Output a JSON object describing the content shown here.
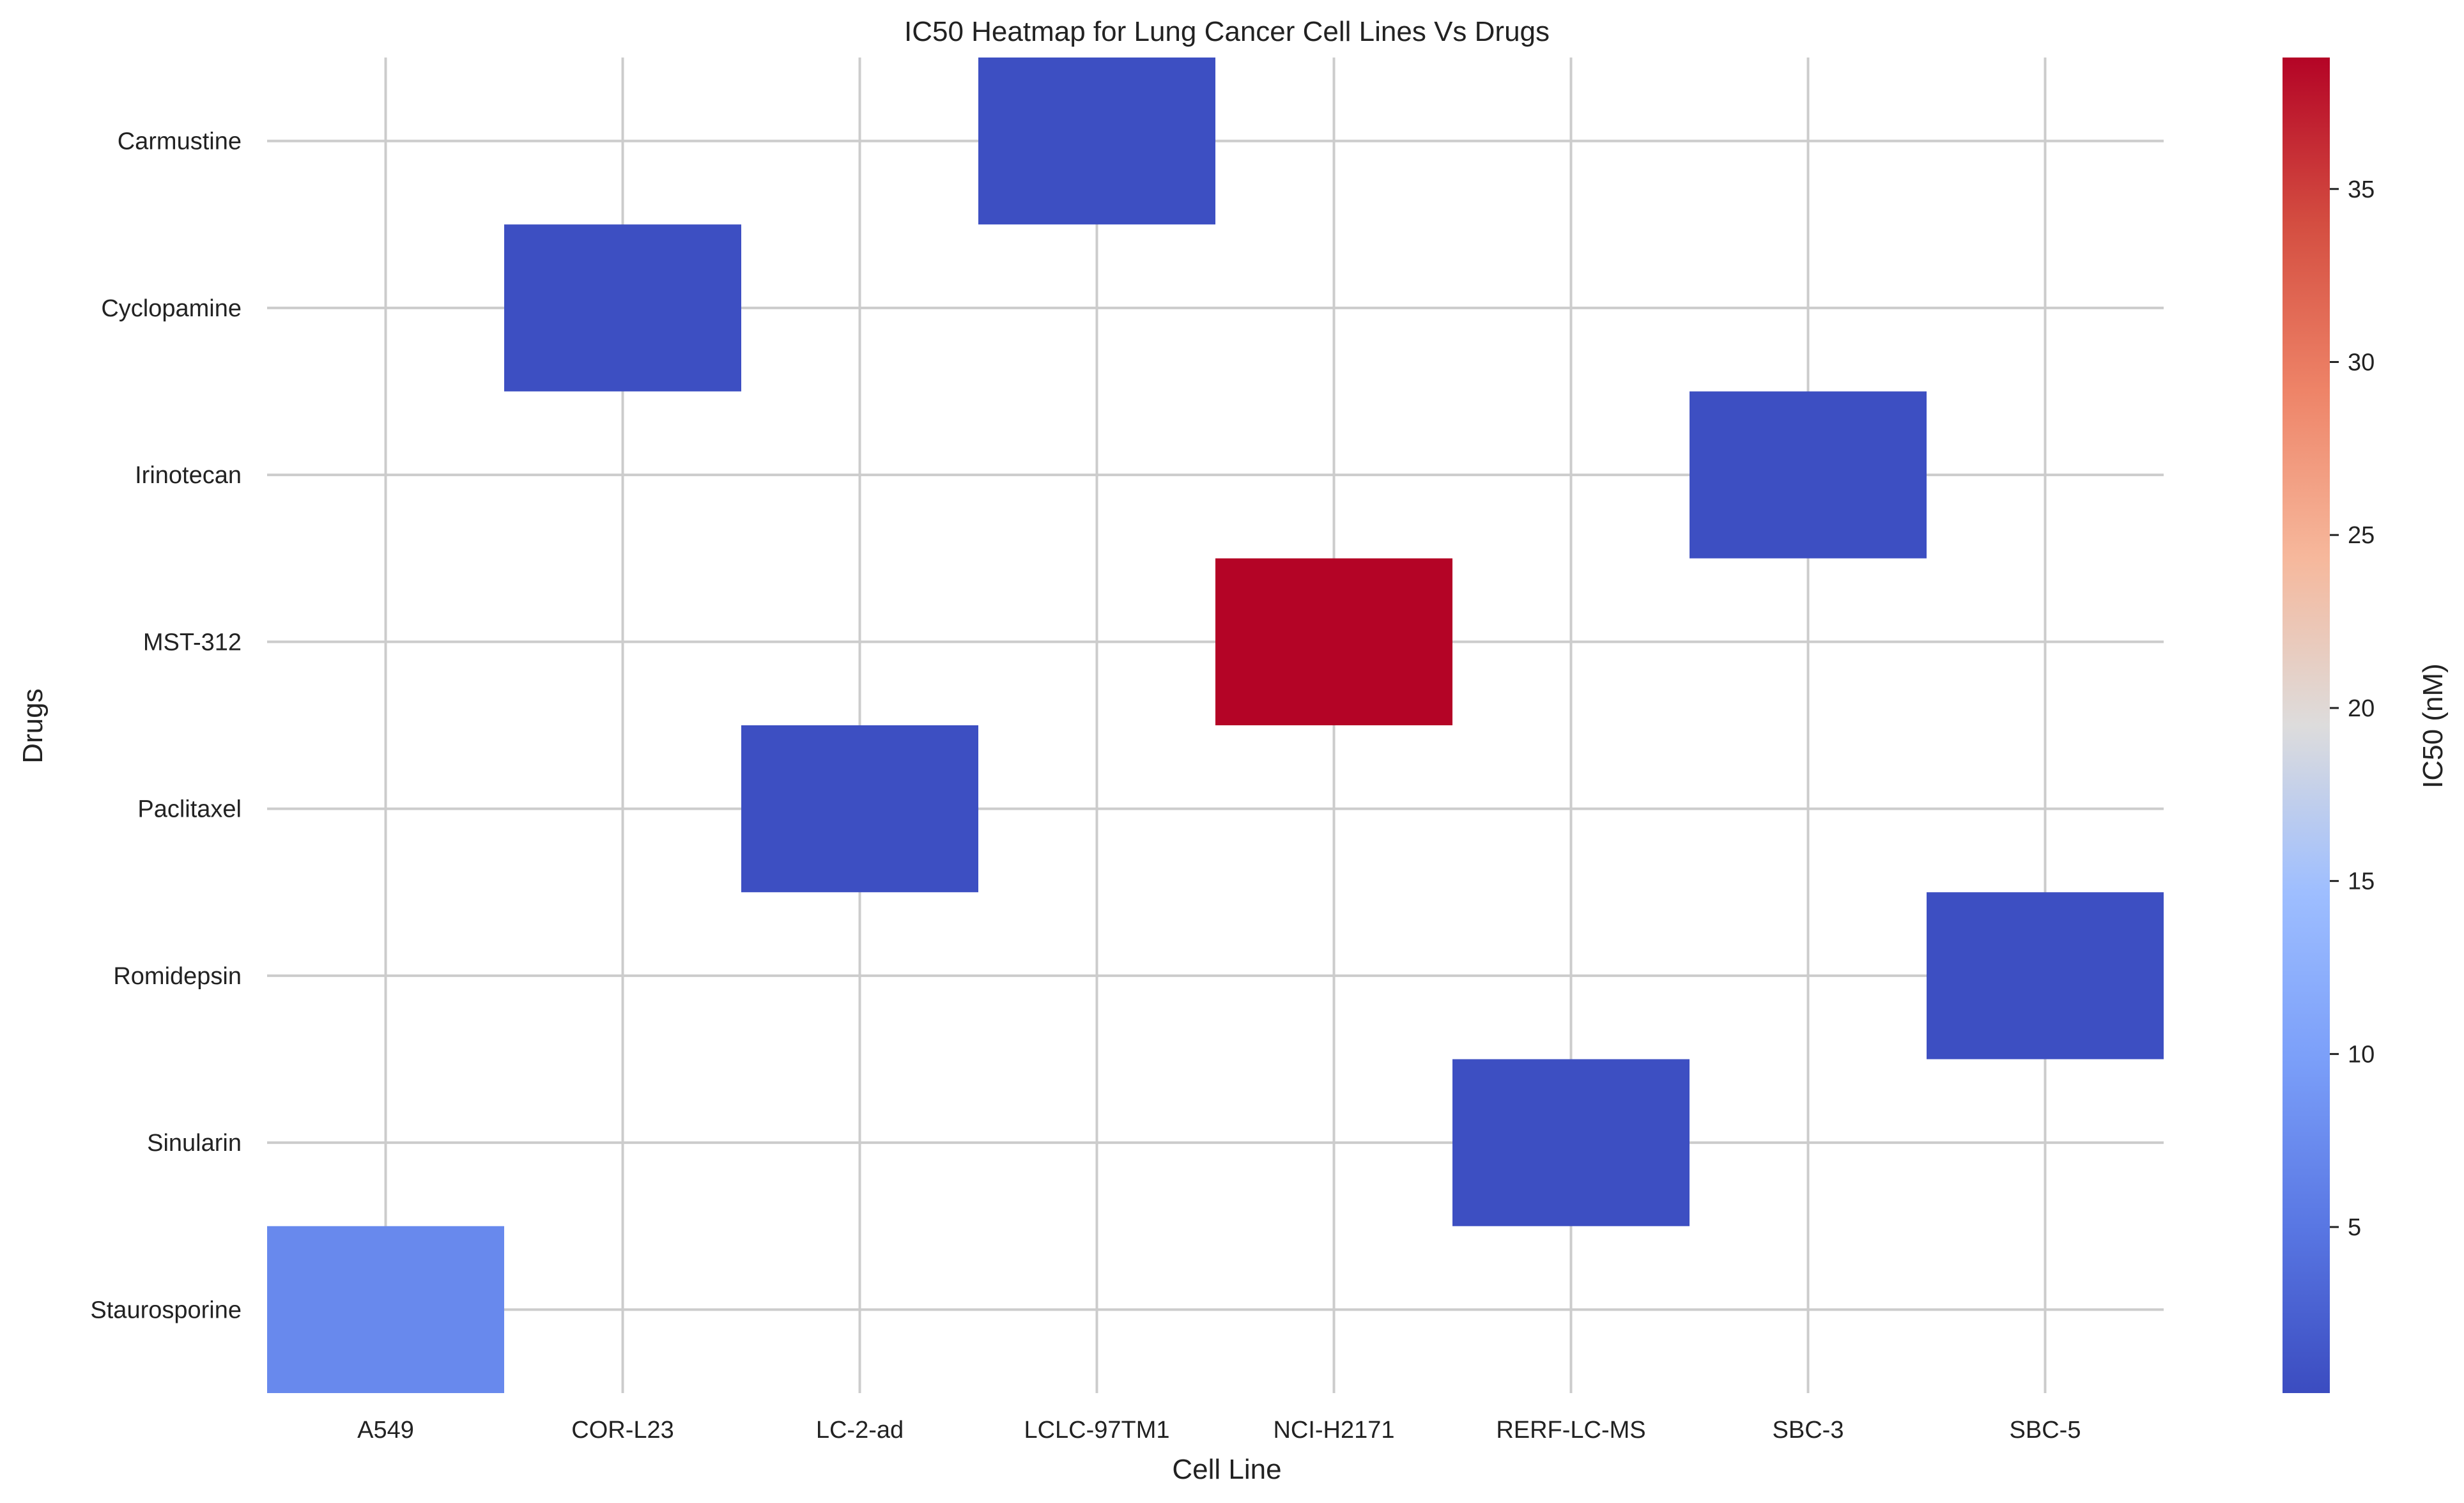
{
  "chart_data": {
    "type": "heatmap",
    "title": "IC50 Heatmap for Lung Cancer Cell Lines Vs Drugs",
    "xlabel": "Cell Line",
    "ylabel": "Drugs",
    "x_categories": [
      "A549",
      "COR-L23",
      "LC-2-ad",
      "LCLC-97TM1",
      "NCI-H2171",
      "RERF-LC-MS",
      "SBC-3",
      "SBC-5"
    ],
    "y_categories": [
      "Carmustine",
      "Cyclopamine",
      "Irinotecan",
      "MST-312",
      "Paclitaxel",
      "Romidepsin",
      "Sinularin",
      "Staurosporine"
    ],
    "cells": [
      {
        "x": "LCLC-97TM1",
        "y": "Carmustine",
        "value": 0.5
      },
      {
        "x": "COR-L23",
        "y": "Cyclopamine",
        "value": 0.5
      },
      {
        "x": "SBC-3",
        "y": "Irinotecan",
        "value": 0.5
      },
      {
        "x": "NCI-H2171",
        "y": "MST-312",
        "value": 38.8
      },
      {
        "x": "LC-2-ad",
        "y": "Paclitaxel",
        "value": 0.5
      },
      {
        "x": "SBC-5",
        "y": "Romidepsin",
        "value": 0.5
      },
      {
        "x": "RERF-LC-MS",
        "y": "Sinularin",
        "value": 0.5
      },
      {
        "x": "A549",
        "y": "Staurosporine",
        "value": 7.2
      }
    ],
    "colorbar": {
      "label": "IC50 (nM)",
      "colormap": "coolwarm",
      "vmin": 0.2,
      "vmax": 38.8,
      "ticks": [
        5,
        10,
        15,
        20,
        25,
        30,
        35
      ]
    },
    "grid": true
  }
}
